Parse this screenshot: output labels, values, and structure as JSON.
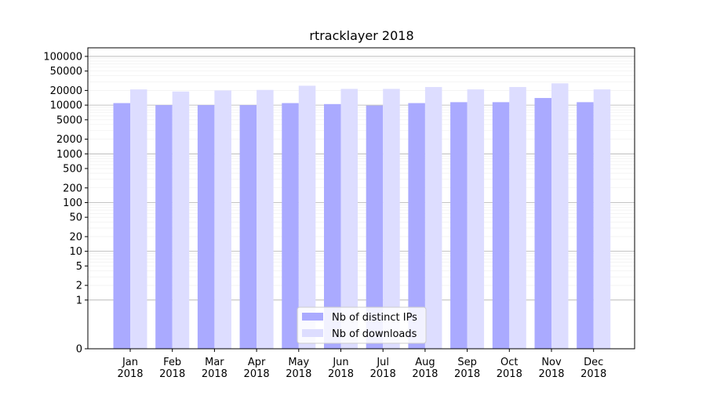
{
  "chart_data": {
    "type": "bar",
    "title": "rtracklayer 2018",
    "xlabel": "",
    "ylabel": "",
    "yscale": "symlog",
    "ylim": [
      0,
      150000
    ],
    "categories": [
      "Jan\n2018",
      "Feb\n2018",
      "Mar\n2018",
      "Apr\n2018",
      "May\n2018",
      "Jun\n2018",
      "Jul\n2018",
      "Aug\n2018",
      "Sep\n2018",
      "Oct\n2018",
      "Nov\n2018",
      "Dec\n2018"
    ],
    "yticks": [
      0,
      1,
      2,
      5,
      10,
      20,
      50,
      100,
      200,
      500,
      1000,
      2000,
      5000,
      10000,
      20000,
      50000,
      100000
    ],
    "ytick_labels": [
      "0",
      "1",
      "2",
      "5",
      "10",
      "20",
      "50",
      "100",
      "200",
      "500",
      "1000",
      "2000",
      "5000",
      "10000",
      "20000",
      "50000",
      "100000"
    ],
    "grid": true,
    "legend_position": "bottom-center",
    "series": [
      {
        "name": "Nb of distinct IPs",
        "color": "#aaaaff",
        "values": [
          11000,
          10000,
          10000,
          10000,
          11000,
          10500,
          9800,
          11000,
          11500,
          11500,
          14000,
          11500
        ]
      },
      {
        "name": "Nb of downloads",
        "color": "#ddddff",
        "values": [
          21000,
          19000,
          20000,
          20500,
          25000,
          21500,
          21500,
          23500,
          21000,
          23500,
          28000,
          21000
        ]
      }
    ]
  }
}
